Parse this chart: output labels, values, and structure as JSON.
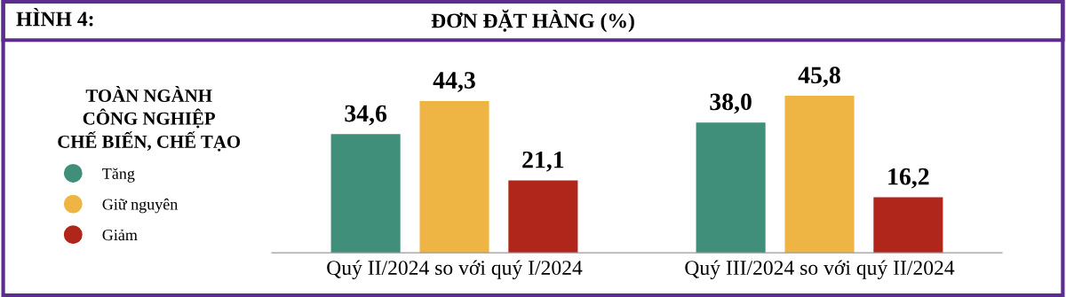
{
  "chart_data": {
    "type": "bar",
    "title": "ĐƠN ĐẶT HÀNG (%)",
    "annotations": [
      "HÌNH 4:"
    ],
    "legend_title": "TOÀN NGÀNH\nCÔNG NGHIỆP\nCHẾ BIẾN, CHẾ TẠO",
    "categories": [
      "Quý II/2024 so với quý I/2024",
      "Quý III/2024 so với quý II/2024"
    ],
    "series": [
      {
        "name": "Tăng",
        "color": "#3f8f7b",
        "values": [
          34.6,
          38.0
        ],
        "value_labels": [
          "34,6",
          "38,0"
        ]
      },
      {
        "name": "Giữ nguyên",
        "color": "#eeb545",
        "values": [
          44.3,
          45.8
        ],
        "value_labels": [
          "44,3",
          "45,8"
        ]
      },
      {
        "name": "Giảm",
        "color": "#b0261a",
        "values": [
          21.1,
          16.2
        ],
        "value_labels": [
          "21,1",
          "16,2"
        ]
      }
    ],
    "legend": "left"
  }
}
